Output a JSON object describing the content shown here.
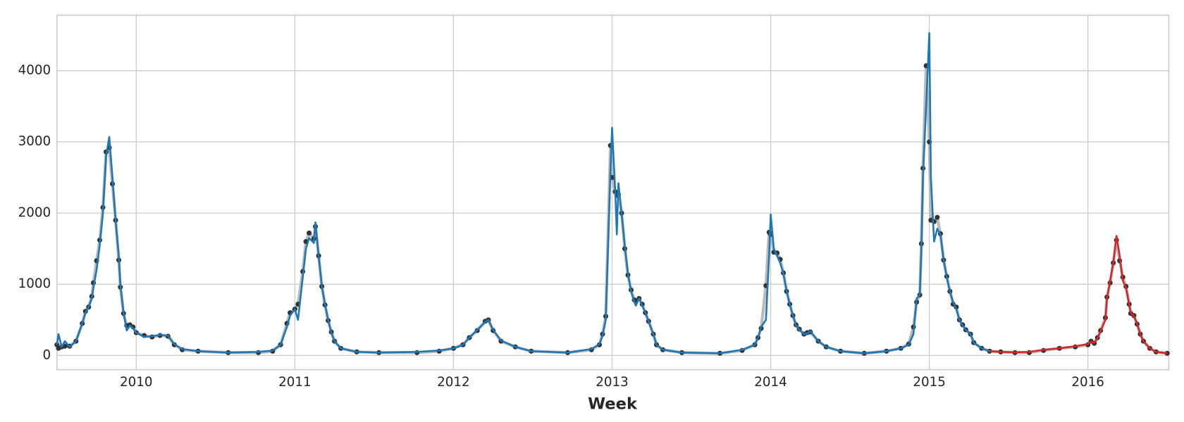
{
  "chart_data": {
    "type": "line",
    "x_label": "Week",
    "x": [
      2009.5,
      2009.51,
      2009.53,
      2009.55,
      2009.58,
      2009.62,
      2009.66,
      2009.68,
      2009.7,
      2009.72,
      2009.73,
      2009.75,
      2009.77,
      2009.79,
      2009.81,
      2009.83,
      2009.85,
      2009.87,
      2009.89,
      2009.9,
      2009.92,
      2009.94,
      2009.96,
      2009.98,
      2010.0,
      2010.05,
      2010.1,
      2010.15,
      2010.2,
      2010.24,
      2010.29,
      2010.39,
      2010.58,
      2010.77,
      2010.86,
      2010.91,
      2010.95,
      2010.97,
      2011.0,
      2011.02,
      2011.05,
      2011.07,
      2011.09,
      2011.12,
      2011.13,
      2011.15,
      2011.17,
      2011.19,
      2011.21,
      2011.23,
      2011.25,
      2011.29,
      2011.39,
      2011.53,
      2011.77,
      2011.91,
      2012.0,
      2012.06,
      2012.1,
      2012.15,
      2012.2,
      2012.22,
      2012.25,
      2012.3,
      2012.39,
      2012.49,
      2012.72,
      2012.87,
      2012.92,
      2012.94,
      2012.96,
      2012.99,
      2013.0,
      2013.02,
      2013.03,
      2013.04,
      2013.06,
      2013.08,
      2013.1,
      2013.12,
      2013.14,
      2013.15,
      2013.17,
      2013.19,
      2013.21,
      2013.23,
      2013.26,
      2013.28,
      2013.32,
      2013.44,
      2013.68,
      2013.82,
      2013.9,
      2013.92,
      2013.94,
      2013.97,
      2013.99,
      2014.0,
      2014.02,
      2014.04,
      2014.06,
      2014.08,
      2014.1,
      2014.12,
      2014.14,
      2014.16,
      2014.18,
      2014.21,
      2014.23,
      2014.25,
      2014.3,
      2014.35,
      2014.44,
      2014.59,
      2014.73,
      2014.82,
      2014.87,
      2014.9,
      2014.92,
      2014.94,
      2014.95,
      2014.96,
      2014.98,
      2015.0,
      2015.01,
      2015.03,
      2015.05,
      2015.07,
      2015.09,
      2015.11,
      2015.13,
      2015.15,
      2015.17,
      2015.19,
      2015.21,
      2015.23,
      2015.26,
      2015.28,
      2015.33,
      2015.38,
      2015.45,
      2015.54,
      2015.63,
      2015.72,
      2015.82,
      2015.92,
      2016.0,
      2016.02,
      2016.04,
      2016.06,
      2016.08,
      2016.11,
      2016.12,
      2016.14,
      2016.16,
      2016.18,
      2016.2,
      2016.22,
      2016.24,
      2016.26,
      2016.27,
      2016.29,
      2016.31,
      2016.33,
      2016.35,
      2016.39,
      2016.43,
      2016.5
    ],
    "series": [
      {
        "color": "#bbbbbb",
        "marker_color": "#333333",
        "values": [
          150,
          100,
          120,
          130,
          130,
          200,
          450,
          620,
          680,
          830,
          1020,
          1330,
          1620,
          2080,
          2860,
          2920,
          2410,
          1900,
          1340,
          960,
          590,
          420,
          430,
          400,
          320,
          280,
          260,
          280,
          270,
          150,
          80,
          60,
          40,
          40,
          60,
          150,
          450,
          600,
          650,
          720,
          1180,
          1600,
          1720,
          1640,
          1810,
          1400,
          970,
          710,
          490,
          330,
          200,
          100,
          50,
          40,
          40,
          60,
          100,
          150,
          250,
          350,
          480,
          500,
          350,
          200,
          120,
          60,
          40,
          80,
          150,
          300,
          550,
          2950,
          2500,
          2300,
          2250,
          2260,
          2000,
          1500,
          1130,
          920,
          780,
          760,
          800,
          720,
          600,
          480,
          300,
          150,
          80,
          40,
          30,
          70,
          150,
          250,
          380,
          980,
          1730,
          1700,
          1450,
          1440,
          1350,
          1160,
          900,
          720,
          560,
          430,
          370,
          300,
          320,
          330,
          200,
          120,
          60,
          30,
          60,
          100,
          160,
          400,
          750,
          850,
          1570,
          2630,
          4070,
          3000,
          1900,
          1880,
          1940,
          1710,
          1340,
          1110,
          900,
          720,
          680,
          500,
          430,
          360,
          300,
          180,
          100,
          60,
          50,
          40,
          40,
          70,
          100,
          120,
          150,
          200,
          170,
          250,
          350,
          530,
          820,
          1020,
          1300,
          1620,
          1330,
          1100,
          970,
          720,
          590,
          560,
          440,
          300,
          200,
          100,
          50,
          30
        ]
      },
      {
        "color": "#1f77b4",
        "values": [
          150,
          300,
          120,
          200,
          120,
          200,
          450,
          600,
          680,
          800,
          950,
          1200,
          1550,
          2000,
          2800,
          3070,
          2500,
          1900,
          1400,
          1000,
          600,
          350,
          420,
          380,
          320,
          260,
          270,
          290,
          280,
          160,
          90,
          60,
          40,
          50,
          70,
          150,
          400,
          560,
          650,
          500,
          1100,
          1500,
          1650,
          1580,
          1870,
          1400,
          980,
          720,
          500,
          320,
          200,
          100,
          50,
          40,
          50,
          70,
          100,
          150,
          250,
          360,
          470,
          500,
          360,
          210,
          120,
          60,
          40,
          90,
          160,
          280,
          500,
          2600,
          3200,
          2300,
          1700,
          2420,
          2000,
          1550,
          1150,
          900,
          750,
          700,
          800,
          700,
          600,
          480,
          300,
          150,
          80,
          40,
          30,
          80,
          150,
          250,
          400,
          500,
          1400,
          1980,
          1500,
          1400,
          1300,
          1150,
          920,
          720,
          560,
          420,
          360,
          300,
          310,
          340,
          200,
          120,
          60,
          30,
          60,
          100,
          150,
          300,
          800,
          850,
          1500,
          2500,
          3500,
          4530,
          2500,
          1600,
          1780,
          1700,
          1350,
          1100,
          900,
          750,
          650,
          500,
          420,
          360,
          300,
          180,
          100,
          60,
          null,
          null,
          null,
          null,
          null,
          null,
          null,
          null,
          null,
          null,
          null,
          null,
          null,
          null,
          null,
          null,
          null,
          null,
          null,
          null,
          null,
          null,
          null,
          null,
          null,
          null,
          null,
          null
        ]
      },
      {
        "color": "#d62728",
        "values": [
          null,
          null,
          null,
          null,
          null,
          null,
          null,
          null,
          null,
          null,
          null,
          null,
          null,
          null,
          null,
          null,
          null,
          null,
          null,
          null,
          null,
          null,
          null,
          null,
          null,
          null,
          null,
          null,
          null,
          null,
          null,
          null,
          null,
          null,
          null,
          null,
          null,
          null,
          null,
          null,
          null,
          null,
          null,
          null,
          null,
          null,
          null,
          null,
          null,
          null,
          null,
          null,
          null,
          null,
          null,
          null,
          null,
          null,
          null,
          null,
          null,
          null,
          null,
          null,
          null,
          null,
          null,
          null,
          null,
          null,
          null,
          null,
          null,
          null,
          null,
          null,
          null,
          null,
          null,
          null,
          null,
          null,
          null,
          null,
          null,
          null,
          null,
          null,
          null,
          null,
          null,
          null,
          null,
          null,
          null,
          null,
          null,
          null,
          null,
          null,
          null,
          null,
          null,
          null,
          null,
          null,
          null,
          null,
          null,
          null,
          null,
          null,
          null,
          null,
          null,
          null,
          null,
          null,
          null,
          null,
          null,
          null,
          null,
          null,
          null,
          null,
          null,
          null,
          null,
          null,
          null,
          null,
          null,
          null,
          null,
          null,
          null,
          null,
          null,
          60,
          50,
          45,
          50,
          80,
          100,
          130,
          160,
          190,
          180,
          240,
          340,
          500,
          800,
          1050,
          1300,
          1680,
          1400,
          1050,
          950,
          720,
          600,
          550,
          450,
          300,
          200,
          100,
          50,
          30
        ]
      }
    ],
    "xlim": [
      2009.5,
      2016.51
    ],
    "xticks": [
      2010,
      2011,
      2012,
      2013,
      2014,
      2015,
      2016
    ],
    "ylim": [
      -200,
      4780
    ],
    "yticks": [
      0,
      1000,
      2000,
      3000,
      4000
    ],
    "grid": true
  }
}
